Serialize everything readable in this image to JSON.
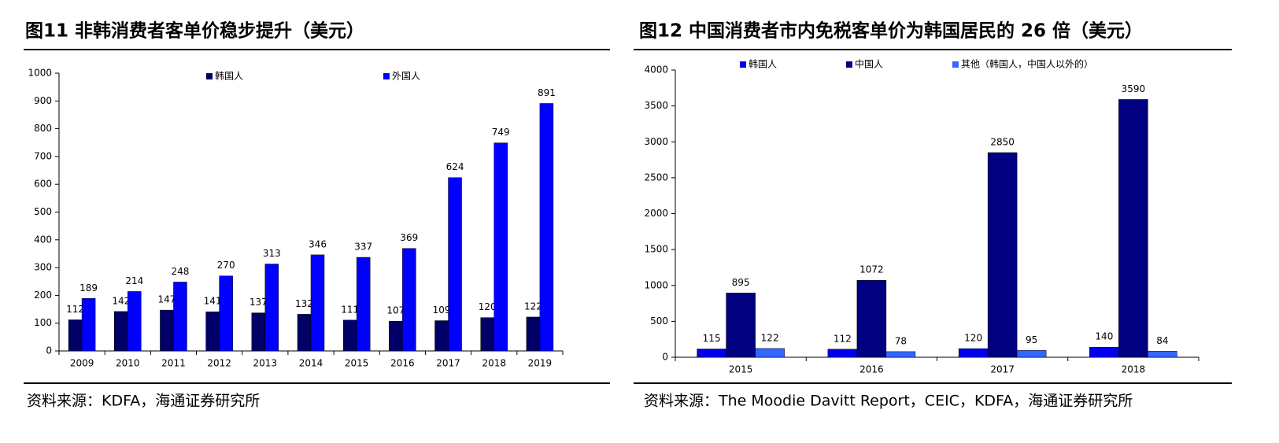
{
  "chart_data": [
    {
      "type": "bar",
      "title": "图11 非韩消费者客单价稳步提升（美元）",
      "source": "资料来源：KDFA，海通证券研究所",
      "categories": [
        "2009",
        "2010",
        "2011",
        "2012",
        "2013",
        "2014",
        "2015",
        "2016",
        "2017",
        "2018",
        "2019"
      ],
      "series": [
        {
          "name": "韩国人",
          "color": "#000066",
          "values": [
            112,
            142,
            147,
            141,
            137,
            132,
            111,
            107,
            109,
            120,
            122
          ]
        },
        {
          "name": "外国人",
          "color": "#0000ff",
          "values": [
            189,
            214,
            248,
            270,
            313,
            346,
            337,
            369,
            624,
            749,
            891
          ]
        }
      ],
      "ylim": [
        0,
        1000
      ],
      "yticks": [
        0,
        100,
        200,
        300,
        400,
        500,
        600,
        700,
        800,
        900,
        1000
      ]
    },
    {
      "type": "bar",
      "title": "图12 中国消费者市内免税客单价为韩国居民的 26 倍（美元）",
      "source": "资料来源：The Moodie Davitt Report，CEIC，KDFA，海通证券研究所",
      "categories": [
        "2015",
        "2016",
        "2017",
        "2018"
      ],
      "series": [
        {
          "name": "韩国人",
          "color": "#0000ee",
          "values": [
            115,
            112,
            120,
            140
          ]
        },
        {
          "name": "中国人",
          "color": "#000080",
          "values": [
            895,
            1072,
            2850,
            3590
          ]
        },
        {
          "name": "其他（韩国人，中国人以外的）",
          "color": "#3366ff",
          "values": [
            122,
            78,
            95,
            84
          ]
        }
      ],
      "ylim": [
        0,
        4000
      ],
      "yticks": [
        0,
        500,
        1000,
        1500,
        2000,
        2500,
        3000,
        3500,
        4000
      ]
    }
  ]
}
